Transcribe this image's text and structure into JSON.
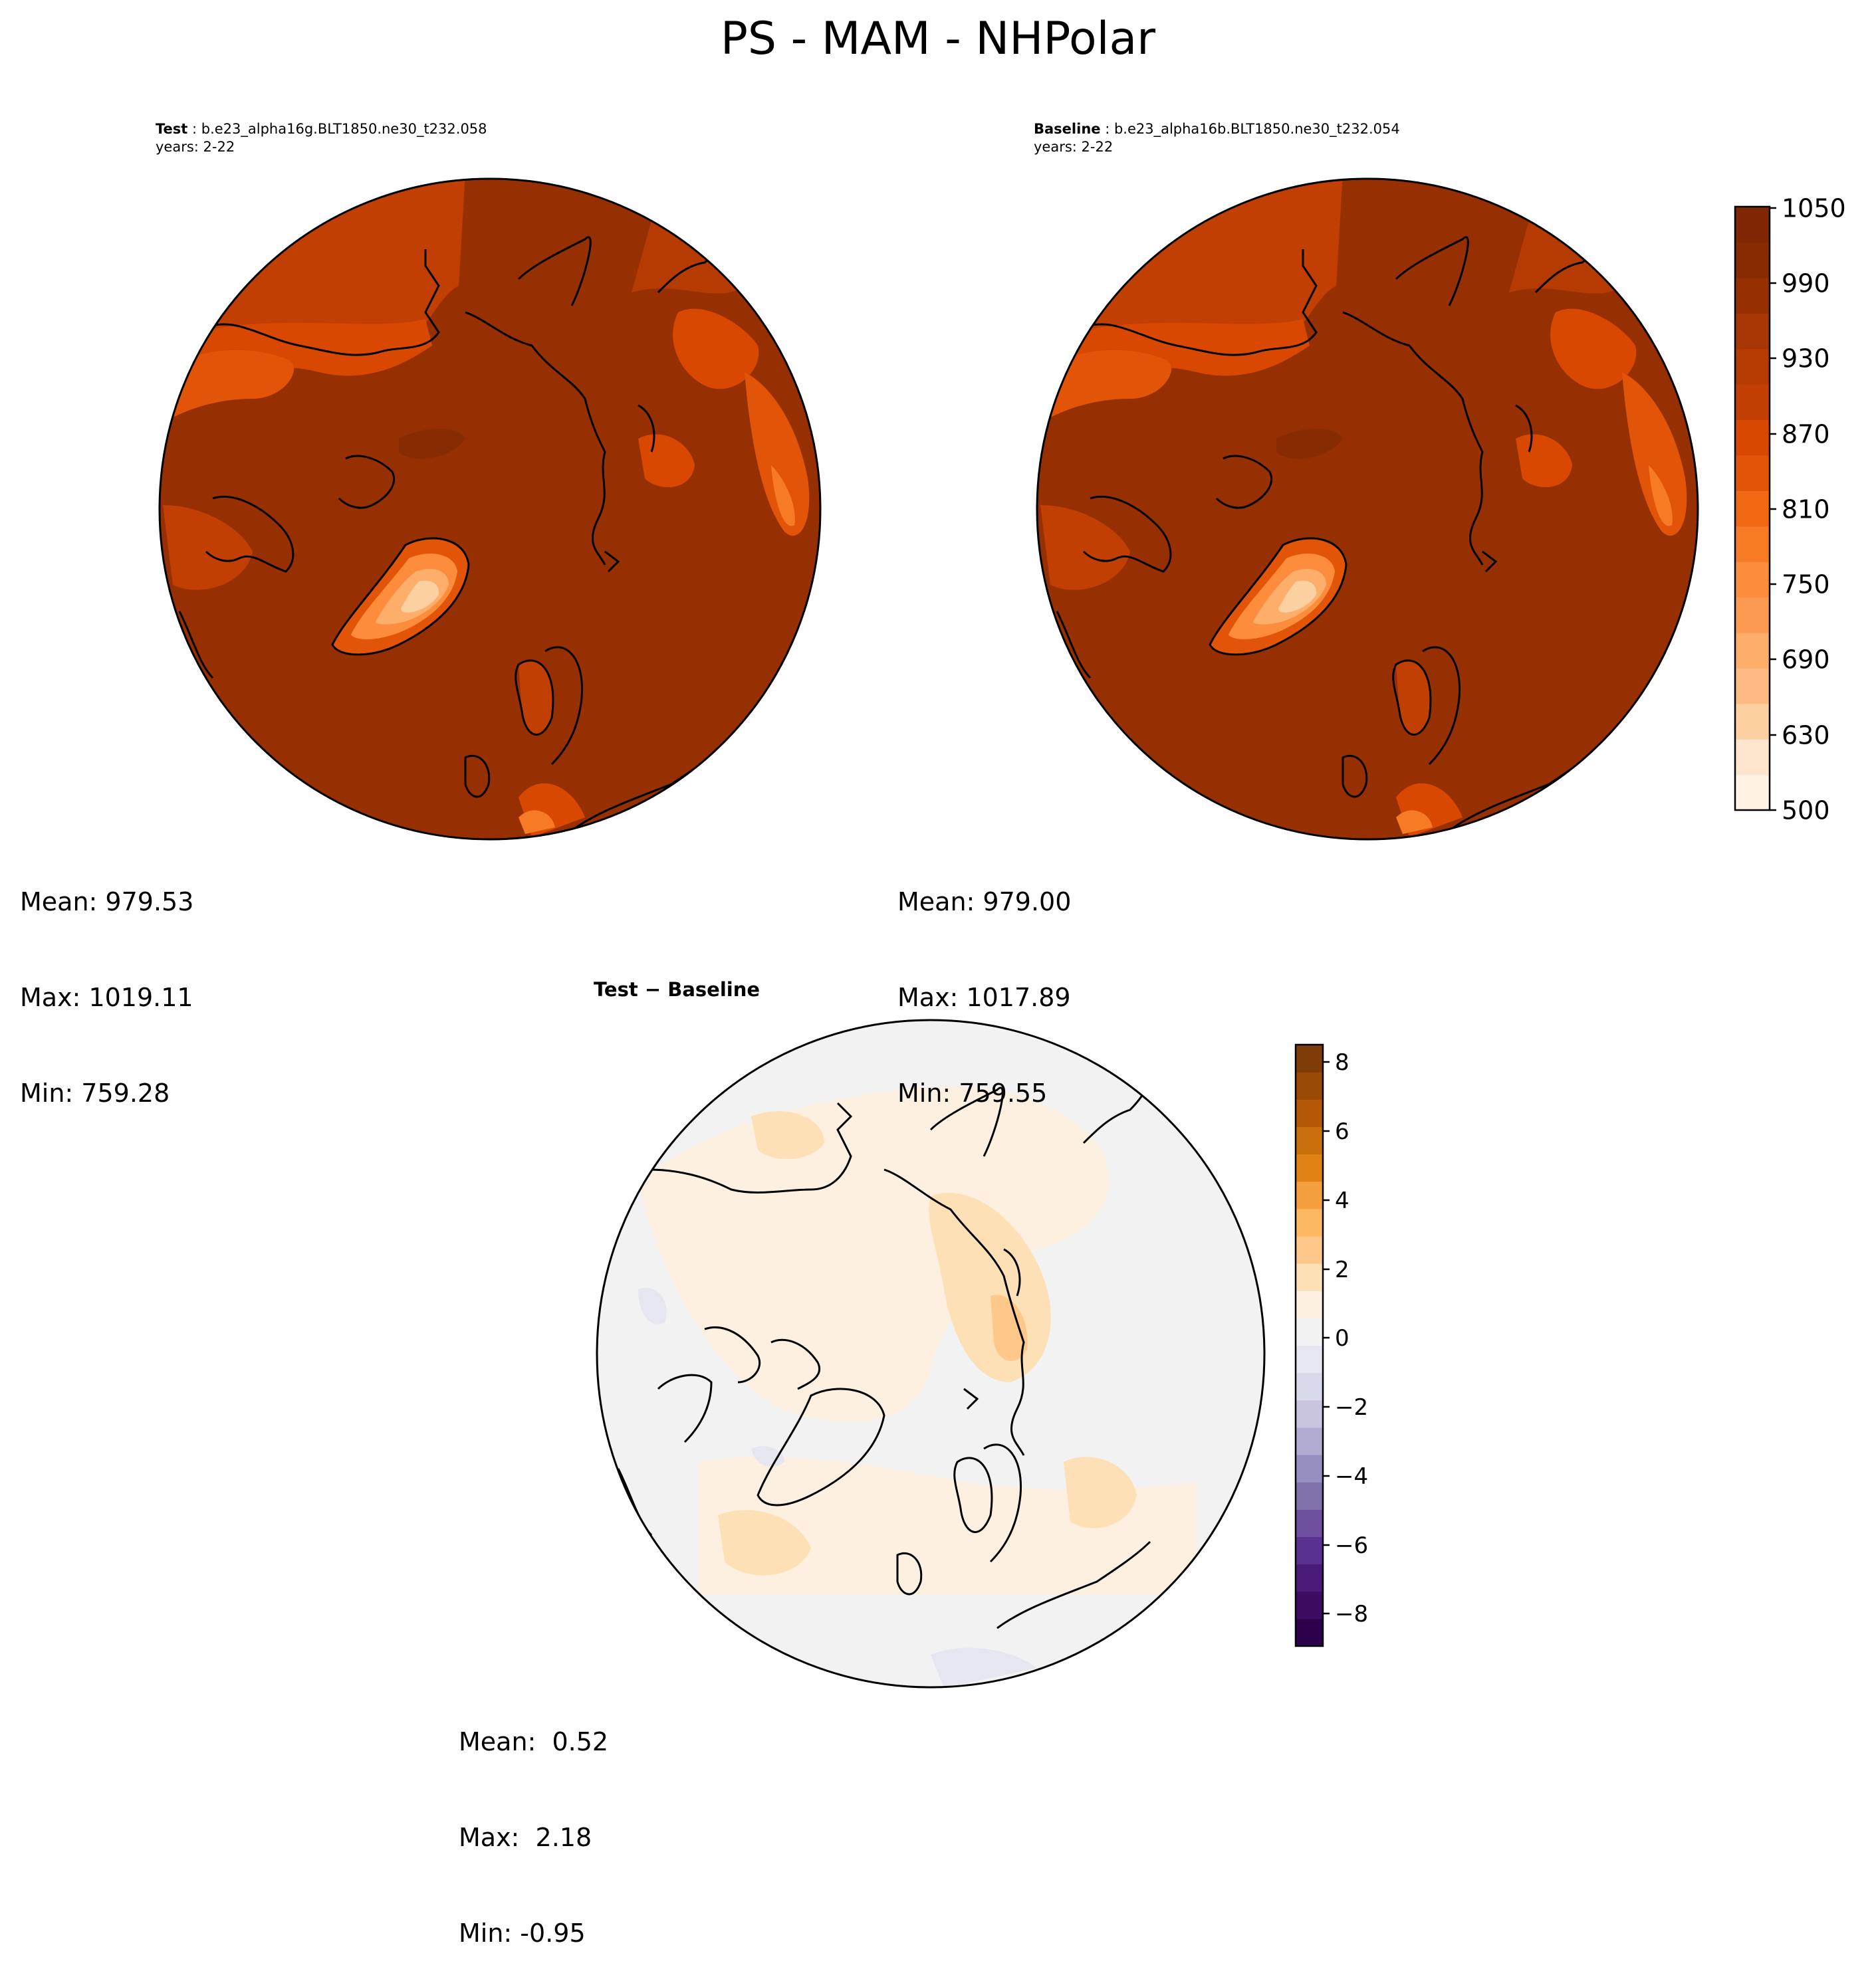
{
  "figure": {
    "title": "PS - MAM - NHPolar"
  },
  "test": {
    "label": "Test",
    "case": " : b.e23_alpha16g.BLT1850.ne30_t232.058",
    "years": "years: 2-22",
    "stats": {
      "mean": "Mean: 979.53",
      "max": "Max: 1019.11",
      "min": "Min: 759.28"
    }
  },
  "baseline": {
    "label": "Baseline",
    "case": " : b.e23_alpha16b.BLT1850.ne30_t232.054",
    "years": "years: 2-22",
    "stats": {
      "mean": "Mean: 979.00",
      "max": "Max: 1017.89",
      "min": "Min: 759.55"
    }
  },
  "difference": {
    "title_a": "Test",
    "title_sep": " − ",
    "title_b": "Baseline",
    "stats": {
      "mean": "Mean:  0.52",
      "max": "Max:  2.18",
      "min": "Min: -0.95"
    }
  },
  "colorbar_ps": {
    "ticks": [
      "1050",
      "990",
      "930",
      "870",
      "810",
      "750",
      "690",
      "630",
      "500"
    ],
    "colors": [
      "#fff3e6",
      "#fee6ce",
      "#fdd0a2",
      "#fdbb84",
      "#fdae6b",
      "#fd9a52",
      "#fd8d3c",
      "#f77a24",
      "#f16913",
      "#e25508",
      "#d94801",
      "#c13f02",
      "#b63b02",
      "#a63603",
      "#963003",
      "#872b03",
      "#7f2704"
    ]
  },
  "colorbar_diff": {
    "ticks": [
      "8",
      "6",
      "4",
      "2",
      "0",
      "−2",
      "−4",
      "−6",
      "−8"
    ],
    "colors": [
      "#2d004b",
      "#3b0c62",
      "#4a1a79",
      "#5a3190",
      "#6e4fa0",
      "#8073ac",
      "#968fbf",
      "#b2abd2",
      "#c9c4e0",
      "#d8daeb",
      "#e6e6f0",
      "#f2f2f2",
      "#fdf0e0",
      "#fee0b6",
      "#fdc889",
      "#fdb863",
      "#f5a040",
      "#e08214",
      "#c9700e",
      "#b35806",
      "#9a4907",
      "#7f3b08"
    ]
  }
}
